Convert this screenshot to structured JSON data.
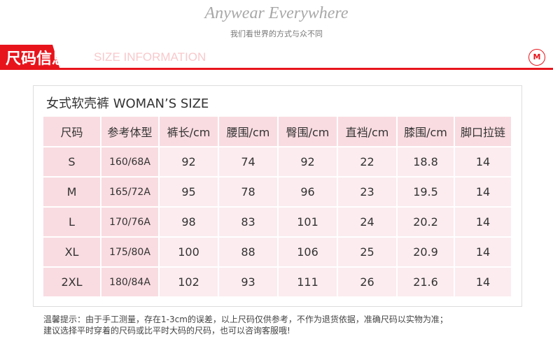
{
  "header": {
    "slogan": "Anywear Everywhere",
    "subtitle": "我们看世界的方式与众不同"
  },
  "section": {
    "title_cn": "尺码信息",
    "title_en": "SIZE INFORMATION",
    "logo_text": "M",
    "accent": "#e8141c"
  },
  "table": {
    "title": "女式软壳裤 WOMAN’S SIZE",
    "headers": [
      "尺码",
      "参考体型",
      "裤长/cm",
      "腰围/cm",
      "臀围/cm",
      "直裆/cm",
      "膝围/cm",
      "脚口拉链"
    ],
    "rows": [
      [
        "S",
        "160/68A",
        "92",
        "74",
        "92",
        "22",
        "18.8",
        "14"
      ],
      [
        "M",
        "165/72A",
        "95",
        "78",
        "96",
        "23",
        "19.5",
        "14"
      ],
      [
        "L",
        "170/76A",
        "98",
        "83",
        "101",
        "24",
        "20.2",
        "14"
      ],
      [
        "XL",
        "175/80A",
        "100",
        "88",
        "106",
        "25",
        "20.9",
        "14"
      ],
      [
        "2XL",
        "180/84A",
        "102",
        "93",
        "111",
        "26",
        "21.6",
        "14"
      ]
    ]
  },
  "note": {
    "line1": "温馨提示：由于手工测量，存在1-3cm的误差，以上尺码仅供参考，不作为退货依据，准确尺码以实物为准；",
    "line2": "建议选择平时穿着的尺码或比平时大码的尺码，也可以咨询客服哦!"
  }
}
